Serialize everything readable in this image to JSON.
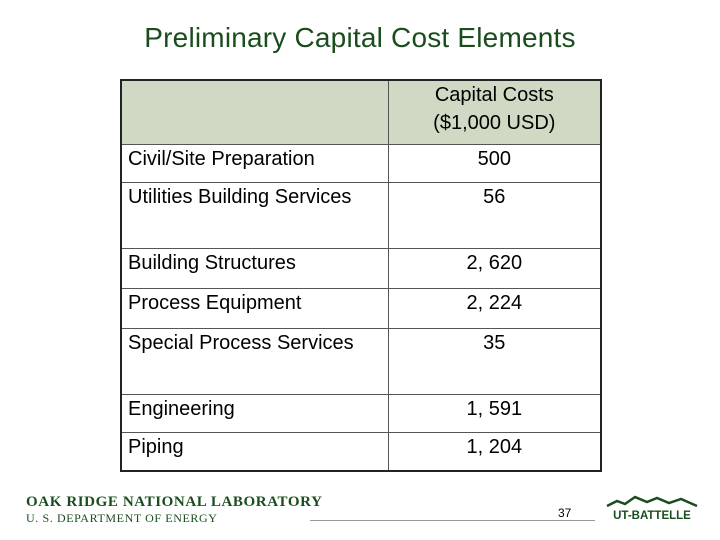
{
  "title": "Preliminary Capital Cost Elements",
  "table": {
    "header_line1": "Capital Costs",
    "header_line2": "($1,000 USD)",
    "rows": [
      {
        "label": "Civil/Site Preparation",
        "value": "500"
      },
      {
        "label": "Utilities Building Services",
        "value": "56"
      },
      {
        "label": "Building Structures",
        "value": "2, 620"
      },
      {
        "label": "Process Equipment",
        "value": "2, 224"
      },
      {
        "label": "Special Process Services",
        "value": "35"
      },
      {
        "label": "Engineering",
        "value": "1, 591"
      },
      {
        "label": "Piping",
        "value": "1, 204"
      }
    ]
  },
  "footer": {
    "logo_line1": "OAK RIDGE NATIONAL LABORATORY",
    "logo_line2": "U. S. DEPARTMENT OF ENERGY",
    "slide_number": "37",
    "right_logo_text": "UT-BATTELLE"
  },
  "colors": {
    "title": "#1a4d1e",
    "header_fill": "#cfd9c4"
  }
}
